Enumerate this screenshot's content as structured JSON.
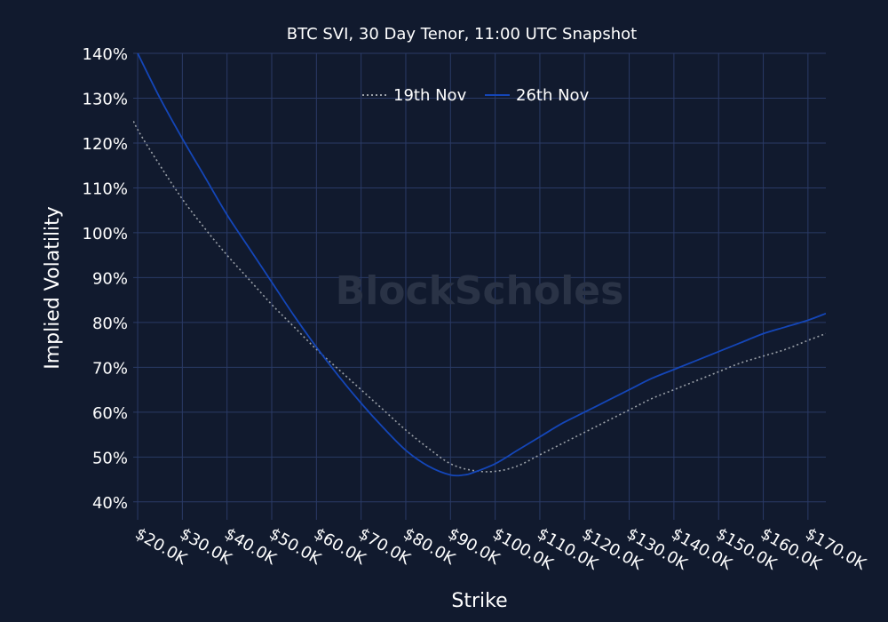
{
  "chart_data": {
    "type": "line",
    "title": "BTC SVI, 30 Day Tenor, 11:00 UTC Snapshot",
    "xlabel": "Strike",
    "ylabel": "Implied Volatility",
    "watermark": "BlockScholes",
    "xlim": [
      19000,
      174000
    ],
    "ylim": [
      36,
      140
    ],
    "x_ticks": [
      20000,
      30000,
      40000,
      50000,
      60000,
      70000,
      80000,
      90000,
      100000,
      110000,
      120000,
      130000,
      140000,
      150000,
      160000,
      170000
    ],
    "x_tick_labels": [
      "$20.0K",
      "$30.0K",
      "$40.0K",
      "$50.0K",
      "$60.0K",
      "$70.0K",
      "$80.0K",
      "$90.0K",
      "$100.0K",
      "$110.0K",
      "$120.0K",
      "$130.0K",
      "$140.0K",
      "$150.0K",
      "$160.0K",
      "$170.0K"
    ],
    "y_ticks": [
      40,
      50,
      60,
      70,
      80,
      90,
      100,
      110,
      120,
      130,
      140
    ],
    "y_tick_labels": [
      "40%",
      "50%",
      "60%",
      "70%",
      "80%",
      "90%",
      "100%",
      "110%",
      "120%",
      "130%",
      "140%"
    ],
    "grid": true,
    "legend_position": "top-center",
    "series": [
      {
        "name": "19th Nov",
        "color": "#9aa0a8",
        "style": "dotted",
        "x": [
          17500,
          20000,
          25000,
          30000,
          35000,
          40000,
          45000,
          50000,
          55000,
          60000,
          65000,
          70000,
          75000,
          80000,
          85000,
          90000,
          95000,
          100000,
          105000,
          110000,
          115000,
          120000,
          125000,
          130000,
          135000,
          140000,
          145000,
          150000,
          155000,
          160000,
          165000,
          170000,
          174000
        ],
        "y": [
          128.5,
          123,
          115,
          107.5,
          101,
          95,
          89.5,
          84,
          79,
          74,
          69.5,
          65,
          60.5,
          56,
          52,
          48.5,
          47,
          46.8,
          48,
          50.5,
          53,
          55.5,
          58,
          60.5,
          63,
          65,
          67,
          69,
          71,
          72.5,
          74,
          76,
          77.5
        ]
      },
      {
        "name": "26th Nov",
        "color": "#1446b8",
        "style": "solid",
        "x": [
          20000,
          25000,
          30000,
          35000,
          40000,
          45000,
          50000,
          55000,
          60000,
          65000,
          70000,
          75000,
          80000,
          85000,
          90000,
          93000,
          95000,
          100000,
          105000,
          110000,
          115000,
          120000,
          125000,
          130000,
          135000,
          140000,
          145000,
          150000,
          155000,
          160000,
          165000,
          170000,
          174000
        ],
        "y": [
          140,
          130,
          121,
          112.5,
          104,
          96.5,
          89,
          81.5,
          74.5,
          68,
          62,
          56.5,
          51.5,
          48,
          46,
          46,
          46.5,
          48.5,
          51.5,
          54.5,
          57.5,
          60,
          62.5,
          65,
          67.5,
          69.5,
          71.5,
          73.5,
          75.5,
          77.5,
          79,
          80.5,
          82
        ]
      }
    ]
  }
}
